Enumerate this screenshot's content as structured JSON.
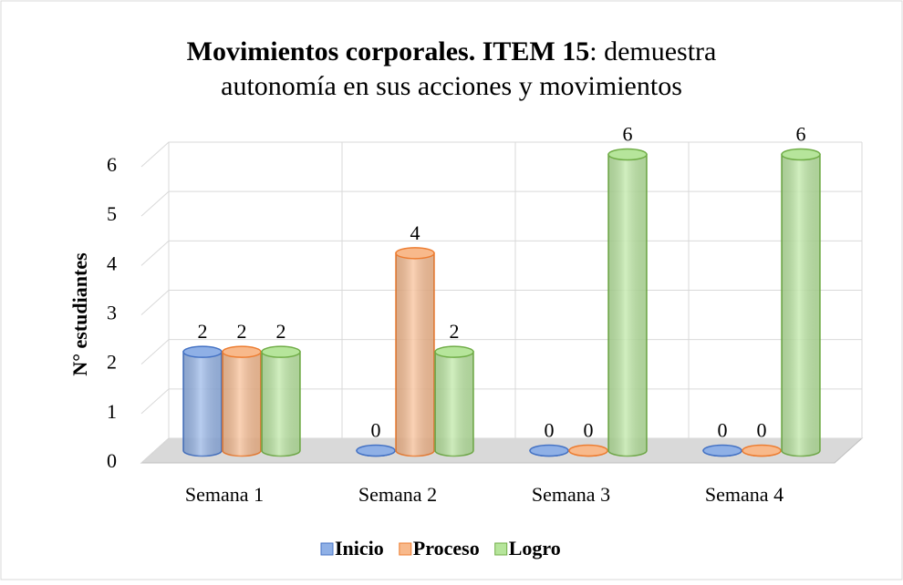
{
  "chart_data": {
    "type": "bar3d",
    "title": [
      "Movimientos corporales. ITEM 15",
      ": demuestra",
      "autonomía en sus acciones y movimientos"
    ],
    "ylabel": "N° estudiantes",
    "categories": [
      "Semana 1",
      "Semana 2",
      "Semana 3",
      "Semana 4"
    ],
    "series": [
      {
        "name": "Inicio",
        "color": "#8fb0e6",
        "values": [
          2,
          0,
          0,
          0
        ]
      },
      {
        "name": "Proceso",
        "color": "#f8b98b",
        "values": [
          2,
          4,
          0,
          0
        ]
      },
      {
        "name": "Logro",
        "color": "#b6e59b",
        "values": [
          2,
          2,
          6,
          6
        ]
      }
    ],
    "ylim": [
      0,
      6
    ],
    "yticks": [
      0,
      1,
      2,
      3,
      4,
      5,
      6
    ],
    "grid": true,
    "legend": "bottom"
  }
}
